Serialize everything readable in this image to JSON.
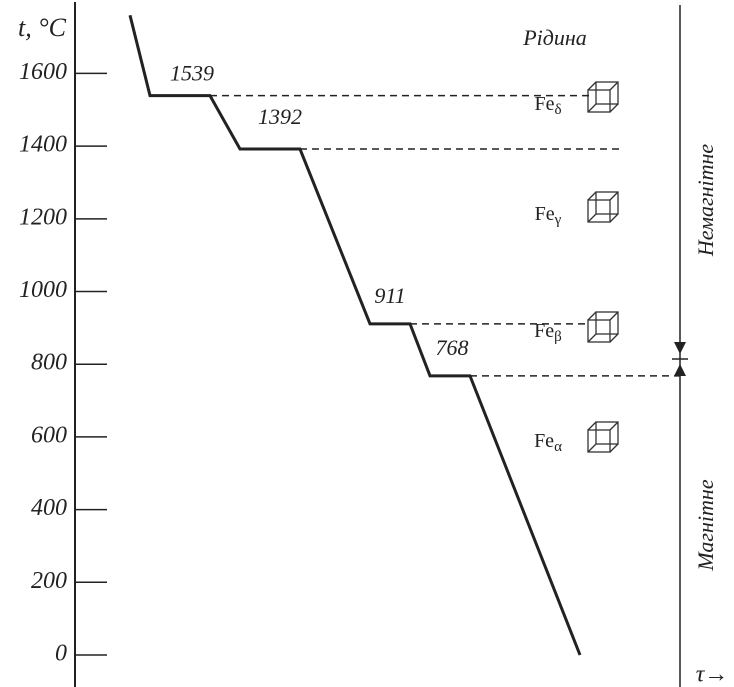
{
  "chart_data": {
    "type": "line",
    "y_label": "t, °C",
    "x_label": "τ→",
    "x": [
      11,
      15,
      27,
      33,
      45,
      59,
      67,
      71,
      79,
      101
    ],
    "series": [
      {
        "name": "Fe",
        "color": "#222",
        "values": [
          1760,
          1539,
          1539,
          1392,
          1392,
          911,
          911,
          768,
          768,
          0
        ]
      }
    ],
    "xlim": [
      0,
      105
    ],
    "ylim": [
      0,
      1780
    ],
    "yticks": [
      0,
      200,
      400,
      600,
      800,
      1000,
      1200,
      1400,
      1600
    ],
    "plateaus": [
      1539,
      1392,
      911,
      768
    ],
    "liquid": "Рідина",
    "phases": [
      {
        "base": "Fe",
        "sub": "δ"
      },
      {
        "base": "Fe",
        "sub": "γ"
      },
      {
        "base": "Fe",
        "sub": "β"
      },
      {
        "base": "Fe",
        "sub": "α"
      }
    ],
    "regions": [
      "Немагнітне",
      "Магнітне"
    ]
  }
}
